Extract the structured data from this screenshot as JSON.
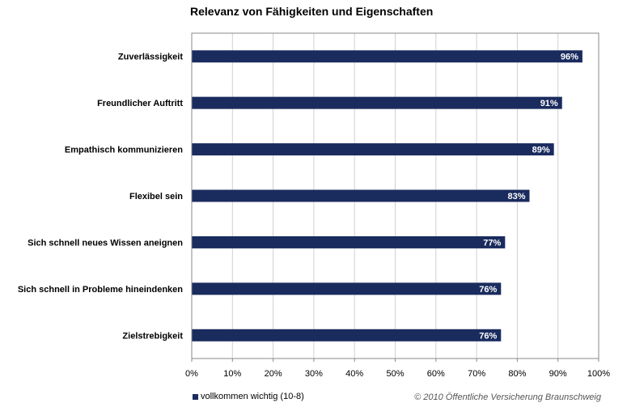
{
  "chart_data": {
    "type": "bar",
    "orientation": "horizontal",
    "title": "Relevanz von Fähigkeiten und Eigenschaften",
    "categories": [
      "Zuverlässigkeit",
      "Freundlicher Auftritt",
      "Empathisch kommunizieren",
      "Flexibel sein",
      "Sich schnell neues Wissen aneignen",
      "Sich schnell in Probleme hineindenken",
      "Zielstrebigkeit"
    ],
    "series": [
      {
        "name": "vollkommen wichtig (10-8)",
        "values": [
          96,
          91,
          89,
          83,
          77,
          76,
          76
        ],
        "color": "#1a2b5e"
      }
    ],
    "data_labels": [
      "96%",
      "91%",
      "89%",
      "83%",
      "77%",
      "76%",
      "76%"
    ],
    "xlim": [
      0,
      100
    ],
    "x_ticks": [
      "0%",
      "10%",
      "20%",
      "30%",
      "40%",
      "50%",
      "60%",
      "70%",
      "80%",
      "90%",
      "100%"
    ],
    "xlabel": "",
    "ylabel": "",
    "grid": true,
    "legend_position": "bottom-left"
  },
  "footer": {
    "copyright": "© 2010 Öffentliche Versicherung Braunschweig"
  },
  "colors": {
    "bar": "#1a2b5e",
    "grid": "#d0d0d0",
    "axis": "#888888"
  }
}
